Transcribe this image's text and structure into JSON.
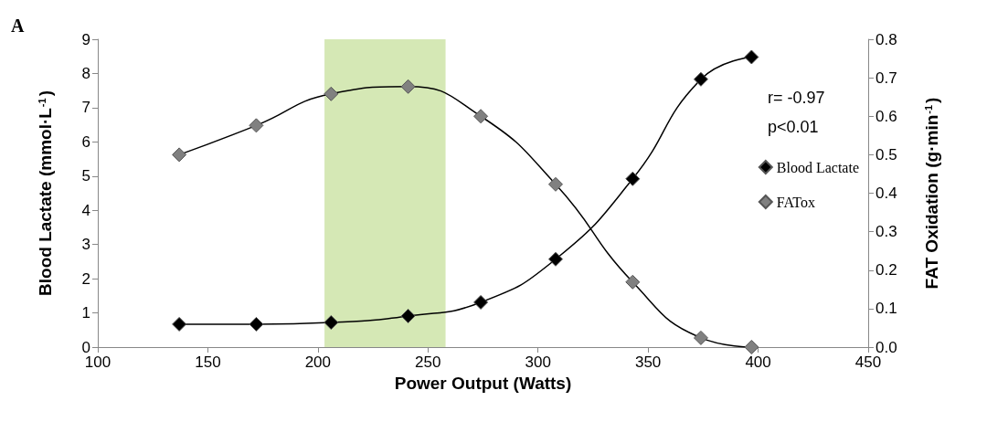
{
  "chart_data": {
    "type": "line",
    "xlabel": "Power Output (Watts)",
    "ylabel": "Blood Lactate (mmol·L$^{-1}$)",
    "y2label": "FAT Oxidation (g·min$^{-1}$)",
    "x": [
      137,
      172,
      206,
      241,
      274,
      308,
      343,
      374,
      397
    ],
    "series": [
      {
        "name": "Blood Lactate",
        "color": "#000000",
        "values": [
          0.67,
          0.67,
          0.72,
          0.91,
          1.31,
          2.57,
          4.92,
          7.83,
          8.48
        ]
      },
      {
        "name": "FATox",
        "color": "#808080",
        "axis": "y2",
        "values": [
          0.5,
          0.576,
          0.658,
          0.677,
          0.6,
          0.423,
          0.169,
          0.024,
          0.0
        ]
      }
    ],
    "xlim": [
      100,
      450
    ],
    "xticks": [
      100,
      150,
      200,
      250,
      300,
      350,
      400,
      450
    ],
    "ylim": [
      0,
      9
    ],
    "yticks": [
      0,
      1,
      2,
      3,
      4,
      5,
      6,
      7,
      8,
      9
    ],
    "y2lim": [
      0,
      0.8
    ],
    "y2ticks": [
      {
        "value": 0,
        "label": "0.0"
      },
      0.1,
      0.2,
      0.3,
      0.4,
      0.5,
      0.6,
      0.7,
      0.8
    ],
    "bands": [
      {
        "axis": "x",
        "from": 203,
        "to": 258,
        "color": "#d5e8b5"
      }
    ],
    "annotations": [
      "A",
      "r= -0.97",
      "p<0.01"
    ],
    "marker": "diamond",
    "line_style": "solid",
    "grid": false,
    "legend": "right"
  }
}
